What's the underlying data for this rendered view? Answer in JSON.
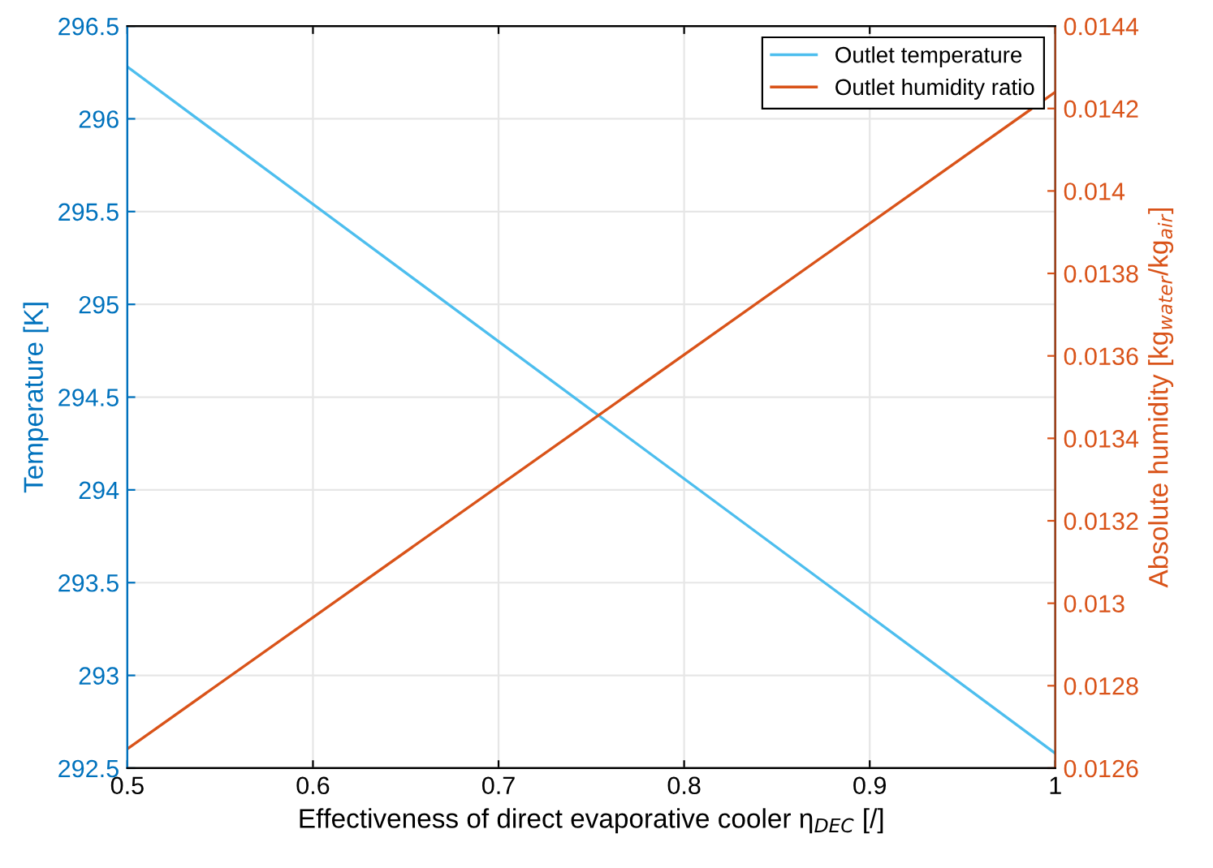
{
  "chart_data": {
    "type": "line",
    "xlabel": "Effectiveness of direct evaporative cooler η$_{DEC}$ [/]",
    "ylabel": "Temperature [K]",
    "y2label": "Absolute humidity [kg$_{water}$/kg$_{air}$]",
    "x": [
      0.5,
      1
    ],
    "series": [
      {
        "name": "Outlet temperature",
        "color": "#4dbeee",
        "values": [
          296.28,
          292.58
        ]
      },
      {
        "name": "Outlet humidity ratio",
        "color": "#d95319",
        "axis": "y2",
        "values": [
          0.012647,
          0.01424
        ]
      }
    ],
    "xlim": [
      0.5,
      1
    ],
    "xticks": [
      0.5,
      0.6,
      0.7,
      0.8,
      0.9,
      1
    ],
    "ylim": [
      292.5,
      296.5
    ],
    "yticks": [
      292.5,
      293,
      293.5,
      294,
      294.5,
      295,
      295.5,
      296,
      296.5
    ],
    "y2lim": [
      0.0126,
      0.0144
    ],
    "y2ticks": [
      0.0126,
      0.0128,
      0.013,
      0.0132,
      0.0134,
      0.0136,
      0.0138,
      0.014,
      0.0142,
      0.0144
    ],
    "grid": true,
    "legend": "top right",
    "line_style": "solid",
    "marker": "none"
  }
}
